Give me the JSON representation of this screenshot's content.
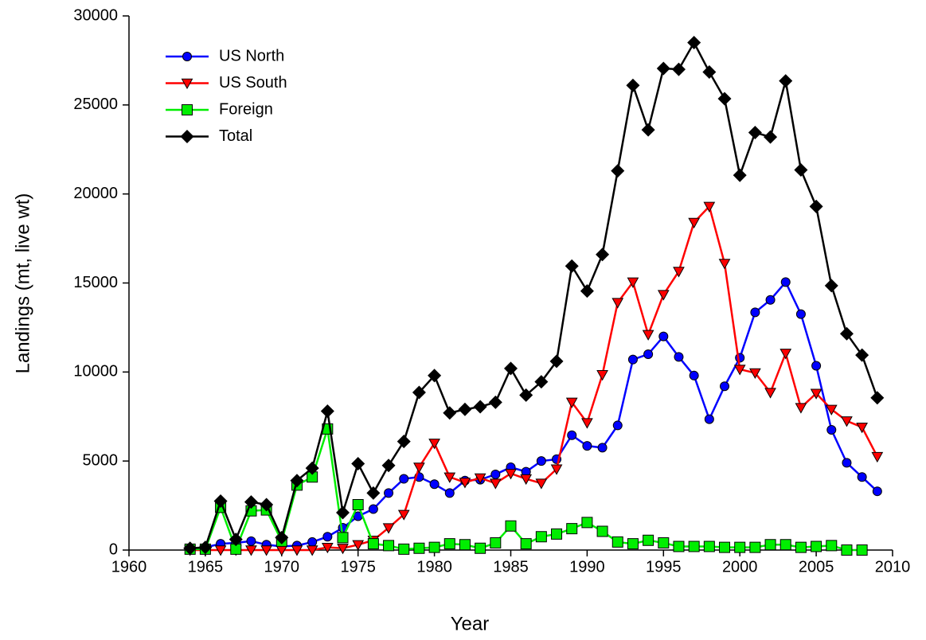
{
  "chart_data": {
    "type": "line",
    "x_label": "Year",
    "y_label": "Landings (mt, live wt)",
    "x": [
      1964,
      1965,
      1966,
      1967,
      1968,
      1969,
      1970,
      1971,
      1972,
      1973,
      1974,
      1975,
      1976,
      1977,
      1978,
      1979,
      1980,
      1981,
      1982,
      1983,
      1984,
      1985,
      1986,
      1987,
      1988,
      1989,
      1990,
      1991,
      1992,
      1993,
      1994,
      1995,
      1996,
      1997,
      1998,
      1999,
      2000,
      2001,
      2002,
      2003,
      2004,
      2005,
      2006,
      2007,
      2008,
      2009
    ],
    "series": [
      {
        "name": "US North",
        "color": "#0000ff",
        "marker": "circle",
        "values": [
          50,
          150,
          350,
          400,
          500,
          300,
          200,
          250,
          450,
          750,
          1250,
          1900,
          2300,
          3200,
          4000,
          4100,
          3700,
          3200,
          3900,
          3950,
          4250,
          4650,
          4400,
          5000,
          5100,
          6450,
          5850,
          5750,
          7000,
          10700,
          11000,
          12000,
          10850,
          9800,
          7350,
          9200,
          10800,
          13350,
          14050,
          15050,
          13250,
          10350,
          6750,
          4900,
          4100,
          3300
        ]
      },
      {
        "name": "US South",
        "color": "#ff0000",
        "marker": "triangle-down",
        "values": [
          0,
          0,
          0,
          0,
          0,
          0,
          0,
          0,
          0,
          150,
          100,
          300,
          550,
          1250,
          2000,
          4650,
          6000,
          4100,
          3800,
          4050,
          3750,
          4300,
          4000,
          3750,
          4550,
          8300,
          7150,
          9850,
          13900,
          15050,
          12100,
          14350,
          15650,
          18400,
          19300,
          16100,
          10150,
          9950,
          8850,
          11050,
          8000,
          8800,
          7900,
          7250,
          6900,
          5250
        ]
      },
      {
        "name": "Foreign",
        "color": "#00ee00",
        "marker": "square",
        "values": [
          50,
          50,
          2400,
          50,
          2200,
          2250,
          500,
          3650,
          4100,
          6800,
          700,
          2550,
          350,
          250,
          50,
          100,
          150,
          350,
          300,
          100,
          400,
          1350,
          350,
          750,
          900,
          1200,
          1550,
          1050,
          450,
          350,
          550,
          400,
          200,
          200,
          200,
          150,
          150,
          150,
          300,
          300,
          150,
          200,
          250,
          0,
          0,
          null
        ]
      },
      {
        "name": "Total",
        "color": "#000000",
        "marker": "diamond",
        "values": [
          100,
          150,
          2750,
          600,
          2700,
          2550,
          700,
          3900,
          4600,
          7800,
          2100,
          4850,
          3200,
          4750,
          6100,
          8850,
          9800,
          7700,
          7900,
          8050,
          8300,
          10200,
          8700,
          9450,
          10600,
          15950,
          14550,
          16600,
          21300,
          26100,
          23600,
          27050,
          27000,
          28500,
          26850,
          25350,
          21050,
          23450,
          23200,
          26350,
          21350,
          19300,
          14850,
          12150,
          10950,
          8550
        ]
      }
    ],
    "xlim": [
      1960,
      2010
    ],
    "xticks": [
      1960,
      1965,
      1970,
      1975,
      1980,
      1985,
      1990,
      1995,
      2000,
      2005,
      2010
    ],
    "ylim": [
      0,
      30000
    ],
    "yticks": [
      0,
      5000,
      10000,
      15000,
      20000,
      25000,
      30000
    ],
    "grid": false,
    "legend": "upper left"
  }
}
